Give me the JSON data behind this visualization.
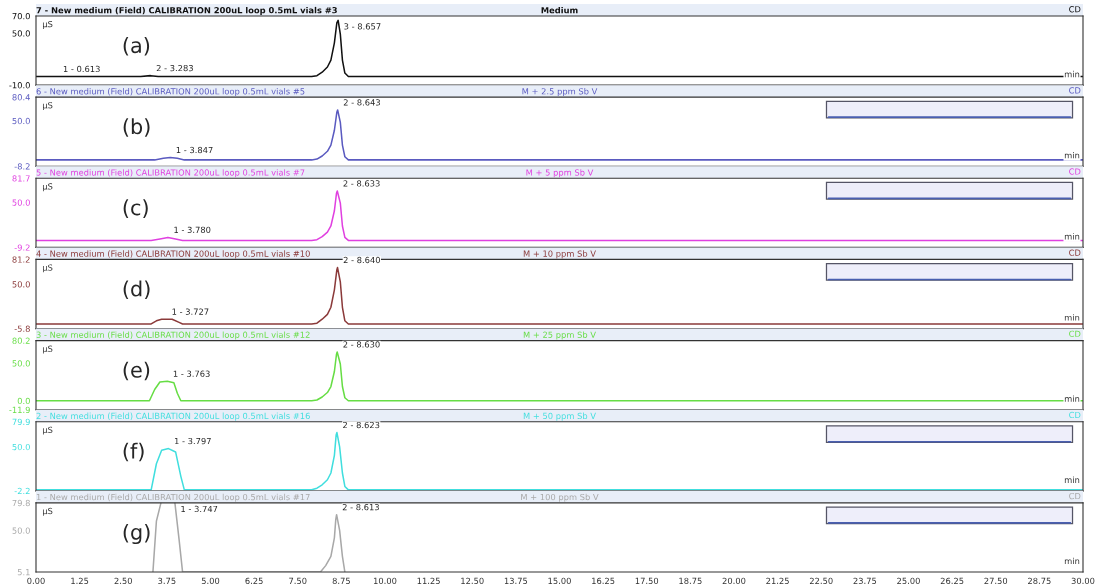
{
  "chart_data": [
    {
      "type": "line",
      "title": "7 - New medium (Field) CALIBRATION 200uL loop 0.5mL vials #3",
      "subtitle": "Medium",
      "xlabel": "min",
      "ylabel": "µS",
      "annotations": [
        "(a)",
        "CD",
        {
          "text": "1 - 0.613",
          "x": 0.613,
          "y": 0
        },
        {
          "text": "2 - 3.283",
          "x": 3.283,
          "y": 1
        },
        {
          "text": "3 - 8.657",
          "x": 8.657,
          "y": 65
        }
      ],
      "series": [
        {
          "color": "#111111",
          "x": [
            0,
            0.613,
            3.0,
            3.283,
            3.5,
            7.9,
            8.05,
            8.2,
            8.35,
            8.45,
            8.55,
            8.62,
            8.657,
            8.72,
            8.78,
            8.85,
            8.95,
            30
          ],
          "values": [
            0,
            0,
            0,
            1,
            0,
            0,
            1,
            5,
            11,
            19,
            39,
            62,
            65,
            49,
            19,
            4,
            0,
            0
          ]
        }
      ],
      "xlim": [
        0,
        30
      ],
      "ylim": [
        -10,
        70
      ],
      "yticks": [
        {
          "value": -10,
          "label": "-10.0"
        },
        {
          "value": 50,
          "label": "50.0"
        },
        {
          "value": 70,
          "label": "70.0"
        }
      ],
      "tick_labels": "y"
    },
    {
      "type": "line",
      "title": "6 - New medium (Field) CALIBRATION 200uL loop 0.5mL vials #5",
      "subtitle": "M + 2.5 ppm Sb V",
      "xlabel": "min",
      "ylabel": "µS",
      "annotations": [
        "(b)",
        "CD",
        {
          "text": "1 - 3.847",
          "x": 3.847,
          "y": 3
        },
        {
          "text": "2 - 8.643",
          "x": 8.643,
          "y": 64
        }
      ],
      "series": [
        {
          "color": "#5a5ac0",
          "x": [
            0,
            3.4,
            3.65,
            3.847,
            4.05,
            4.25,
            7.9,
            8.05,
            8.2,
            8.35,
            8.45,
            8.55,
            8.62,
            8.643,
            8.72,
            8.78,
            8.85,
            8.95,
            30
          ],
          "values": [
            0,
            0,
            2,
            3,
            2,
            0,
            0,
            1,
            5,
            11,
            19,
            38,
            61,
            64,
            48,
            19,
            4,
            0,
            0
          ]
        }
      ],
      "xlim": [
        0,
        30
      ],
      "ylim": [
        -8.2,
        80.4
      ],
      "yticks": [
        {
          "value": -8.2,
          "label": "-8.2"
        },
        {
          "value": 50,
          "label": "50.0"
        },
        {
          "value": 80.4,
          "label": "80.4"
        }
      ],
      "tick_labels": "y"
    },
    {
      "type": "line",
      "title": "5 - New medium (Field) CALIBRATION 200uL loop 0.5mL vials #7",
      "subtitle": "M + 5 ppm Sb V",
      "xlabel": "min",
      "ylabel": "µS",
      "annotations": [
        "(c)",
        "CD",
        {
          "text": "1 - 3.780",
          "x": 3.78,
          "y": 4
        },
        {
          "text": "2 - 8.633",
          "x": 8.633,
          "y": 65
        }
      ],
      "series": [
        {
          "color": "#e040e0",
          "x": [
            0,
            3.3,
            3.55,
            3.78,
            4.0,
            4.2,
            7.9,
            8.05,
            8.2,
            8.35,
            8.45,
            8.55,
            8.61,
            8.633,
            8.72,
            8.78,
            8.85,
            8.95,
            30
          ],
          "values": [
            0,
            0,
            2,
            4,
            2,
            0,
            0,
            1,
            5,
            11,
            19,
            39,
            62,
            65,
            49,
            19,
            4,
            0,
            0
          ]
        }
      ],
      "xlim": [
        0,
        30
      ],
      "ylim": [
        -9.2,
        81.7
      ],
      "yticks": [
        {
          "value": -9.2,
          "label": "-9.2"
        },
        {
          "value": 50,
          "label": "50.0"
        },
        {
          "value": 81.7,
          "label": "81.7"
        }
      ],
      "tick_labels": "y"
    },
    {
      "type": "line",
      "title": "4 - New medium (Field) CALIBRATION 200uL loop 0.5mL vials #10",
      "subtitle": "M + 10 ppm Sb V",
      "xlabel": "min",
      "ylabel": "µS",
      "annotations": [
        "(d)",
        "CD",
        {
          "text": "1 - 3.727",
          "x": 3.727,
          "y": 6
        },
        {
          "text": "2 - 8.640",
          "x": 8.64,
          "y": 71
        }
      ],
      "series": [
        {
          "color": "#8b3a3a",
          "x": [
            0,
            3.3,
            3.45,
            3.6,
            3.727,
            3.9,
            4.1,
            4.2,
            7.9,
            8.05,
            8.2,
            8.35,
            8.45,
            8.55,
            8.62,
            8.64,
            8.72,
            8.78,
            8.85,
            8.95,
            30
          ],
          "values": [
            0,
            0,
            4,
            6,
            6,
            6,
            2,
            0,
            0,
            1,
            6,
            12,
            21,
            43,
            68,
            71,
            53,
            21,
            4,
            0,
            0
          ]
        }
      ],
      "xlim": [
        0,
        30
      ],
      "ylim": [
        -5.8,
        81.2
      ],
      "yticks": [
        {
          "value": -5.8,
          "label": "-5.8"
        },
        {
          "value": 50,
          "label": "50.0"
        },
        {
          "value": 81.2,
          "label": "81.2"
        }
      ],
      "tick_labels": "y"
    },
    {
      "type": "line",
      "title": "3 - New medium (Field) CALIBRATION 200uL loop 0.5mL vials #12",
      "subtitle": "M + 25 ppm Sb V",
      "xlabel": "min",
      "ylabel": "µS",
      "annotations": [
        "(e)",
        "CD",
        {
          "text": "1 - 3.763",
          "x": 3.763,
          "y": 26
        },
        {
          "text": "2 - 8.630",
          "x": 8.63,
          "y": 65
        }
      ],
      "series": [
        {
          "color": "#66dd44",
          "x": [
            0,
            3.25,
            3.4,
            3.55,
            3.763,
            3.95,
            4.05,
            4.15,
            7.9,
            8.05,
            8.2,
            8.35,
            8.45,
            8.55,
            8.61,
            8.63,
            8.72,
            8.78,
            8.85,
            8.95,
            30
          ],
          "values": [
            0,
            0,
            15,
            25,
            26,
            24,
            10,
            0,
            0,
            1,
            5,
            11,
            19,
            39,
            62,
            65,
            49,
            19,
            4,
            0,
            0
          ]
        }
      ],
      "xlim": [
        0,
        30
      ],
      "ylim": [
        -11.9,
        80.2
      ],
      "yticks": [
        {
          "value": -11.9,
          "label": "-11.9"
        },
        {
          "value": 0,
          "label": "0.0"
        },
        {
          "value": 50,
          "label": "50.0"
        },
        {
          "value": 80.2,
          "label": "80.2"
        }
      ],
      "tick_labels": "y"
    },
    {
      "type": "line",
      "title": "2 - New medium (Field) CALIBRATION 200uL loop 0.5mL vials #16",
      "subtitle": "M + 50 ppm Sb V",
      "xlabel": "min",
      "ylabel": "µS",
      "annotations": [
        "(f)",
        "CD",
        {
          "text": "1 - 3.797",
          "x": 3.797,
          "y": 48
        },
        {
          "text": "2 - 8.623",
          "x": 8.623,
          "y": 67
        }
      ],
      "series": [
        {
          "color": "#40dede",
          "x": [
            0,
            3.3,
            3.45,
            3.6,
            3.797,
            4.0,
            4.15,
            4.25,
            7.9,
            8.05,
            8.2,
            8.35,
            8.45,
            8.55,
            8.6,
            8.623,
            8.7,
            8.78,
            8.85,
            8.95,
            30
          ],
          "values": [
            -1,
            -1,
            30,
            46,
            48,
            44,
            15,
            -1,
            -1,
            1,
            5,
            11,
            19,
            40,
            64,
            67,
            50,
            19,
            3,
            -1,
            -1
          ]
        }
      ],
      "xlim": [
        0,
        30
      ],
      "ylim": [
        -2.2,
        79.9
      ],
      "yticks": [
        {
          "value": -2.2,
          "label": "-2.2"
        },
        {
          "value": 50,
          "label": "50.0"
        },
        {
          "value": 79.9,
          "label": "79.9"
        }
      ],
      "tick_labels": "y"
    },
    {
      "type": "line",
      "title": "1 - New medium (Field) CALIBRATION 200uL loop 0.5mL vials #17",
      "subtitle": "M + 100 ppm Sb V",
      "xlabel": "min",
      "ylabel": "µS",
      "annotations": [
        "(g)",
        "CD",
        {
          "text": "1 - 3.747",
          "x": 3.98,
          "y": 79.8
        },
        {
          "text": "2 - 8.613",
          "x": 8.613,
          "y": 67
        }
      ],
      "series": [
        {
          "color": "#a8a8a8",
          "x": [
            3.35,
            3.45,
            3.58,
            3.747,
            3.98,
            4.1,
            4.2,
            8.15,
            8.3,
            8.45,
            8.55,
            8.59,
            8.613,
            8.7,
            8.78,
            8.85
          ],
          "values": [
            5.1,
            60,
            79.8,
            null,
            79.8,
            40,
            5.1,
            5.1,
            12,
            22,
            42,
            62,
            67,
            50,
            22,
            5.1
          ]
        }
      ],
      "xlim": [
        0,
        30
      ],
      "ylim": [
        5.1,
        79.8
      ],
      "yticks": [
        {
          "value": 5.1,
          "label": "5.1"
        },
        {
          "value": 50,
          "label": "50.0"
        },
        {
          "value": 79.8,
          "label": "79.8"
        }
      ],
      "xticks": [
        {
          "value": 0,
          "label": "0.00"
        },
        {
          "value": 1.25,
          "label": "1.25"
        },
        {
          "value": 2.5,
          "label": "2.50"
        },
        {
          "value": 3.75,
          "label": "3.75"
        },
        {
          "value": 5,
          "label": "5.00"
        },
        {
          "value": 6.25,
          "label": "6.25"
        },
        {
          "value": 7.5,
          "label": "7.50"
        },
        {
          "value": 8.75,
          "label": "8.75"
        },
        {
          "value": 10,
          "label": "10.00"
        },
        {
          "value": 11.25,
          "label": "11.25"
        },
        {
          "value": 12.5,
          "label": "12.50"
        },
        {
          "value": 13.75,
          "label": "13.75"
        },
        {
          "value": 15,
          "label": "15.00"
        },
        {
          "value": 16.25,
          "label": "16.25"
        },
        {
          "value": 17.5,
          "label": "17.50"
        },
        {
          "value": 18.75,
          "label": "18.75"
        },
        {
          "value": 20,
          "label": "20.00"
        },
        {
          "value": 21.25,
          "label": "21.25"
        },
        {
          "value": 22.5,
          "label": "22.50"
        },
        {
          "value": 23.75,
          "label": "23.75"
        },
        {
          "value": 25,
          "label": "25.00"
        },
        {
          "value": 26.25,
          "label": "26.25"
        },
        {
          "value": 27.5,
          "label": "27.50"
        },
        {
          "value": 28.75,
          "label": "28.75"
        },
        {
          "value": 30,
          "label": "30.00"
        }
      ]
    }
  ]
}
